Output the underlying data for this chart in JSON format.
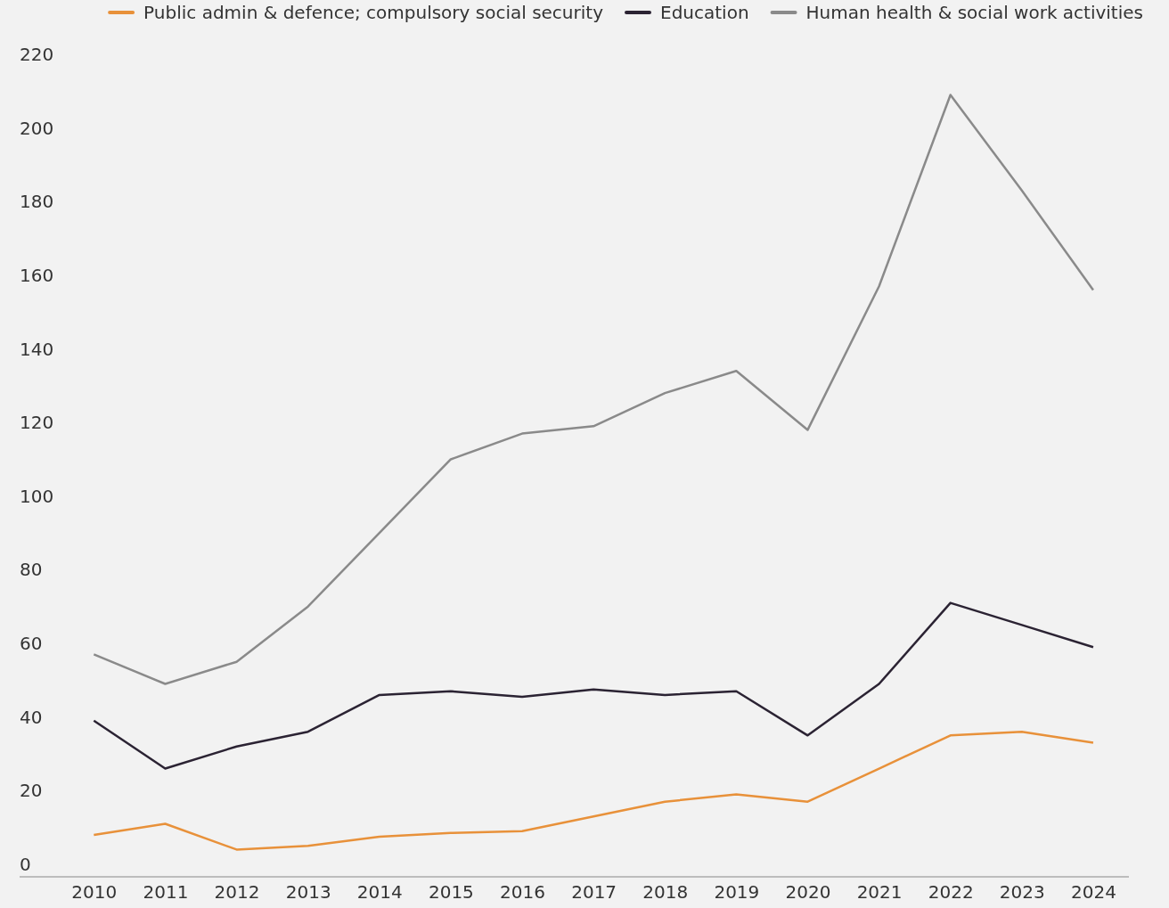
{
  "chart_data": {
    "type": "line",
    "categories": [
      "2010",
      "2011",
      "2012",
      "2013",
      "2014",
      "2015",
      "2016",
      "2017",
      "2018",
      "2019",
      "2020",
      "2021",
      "2022",
      "2023",
      "2024"
    ],
    "series": [
      {
        "name": "Public admin & defence; compulsory social security",
        "color": "#e8913a",
        "values": [
          8,
          11,
          4,
          5,
          7.5,
          8.5,
          9,
          13,
          17,
          19,
          17,
          26,
          35,
          36,
          33
        ]
      },
      {
        "name": "Education",
        "color": "#2b2333",
        "values": [
          39,
          26,
          32,
          36,
          46,
          47,
          45.5,
          47.5,
          46,
          47,
          35,
          49,
          71,
          65,
          59
        ]
      },
      {
        "name": "Human health & social work activities",
        "color": "#8a8a8a",
        "values": [
          57,
          49,
          55,
          70,
          90,
          110,
          117,
          119,
          128,
          134,
          118,
          157,
          209,
          183,
          156
        ]
      }
    ],
    "ylim": [
      -3.4,
      220
    ],
    "yticks": [
      0,
      20,
      40,
      60,
      80,
      100,
      120,
      140,
      160,
      180,
      200,
      220
    ],
    "grid": false,
    "legend": "top",
    "marker": "none",
    "line_style": "solid"
  }
}
